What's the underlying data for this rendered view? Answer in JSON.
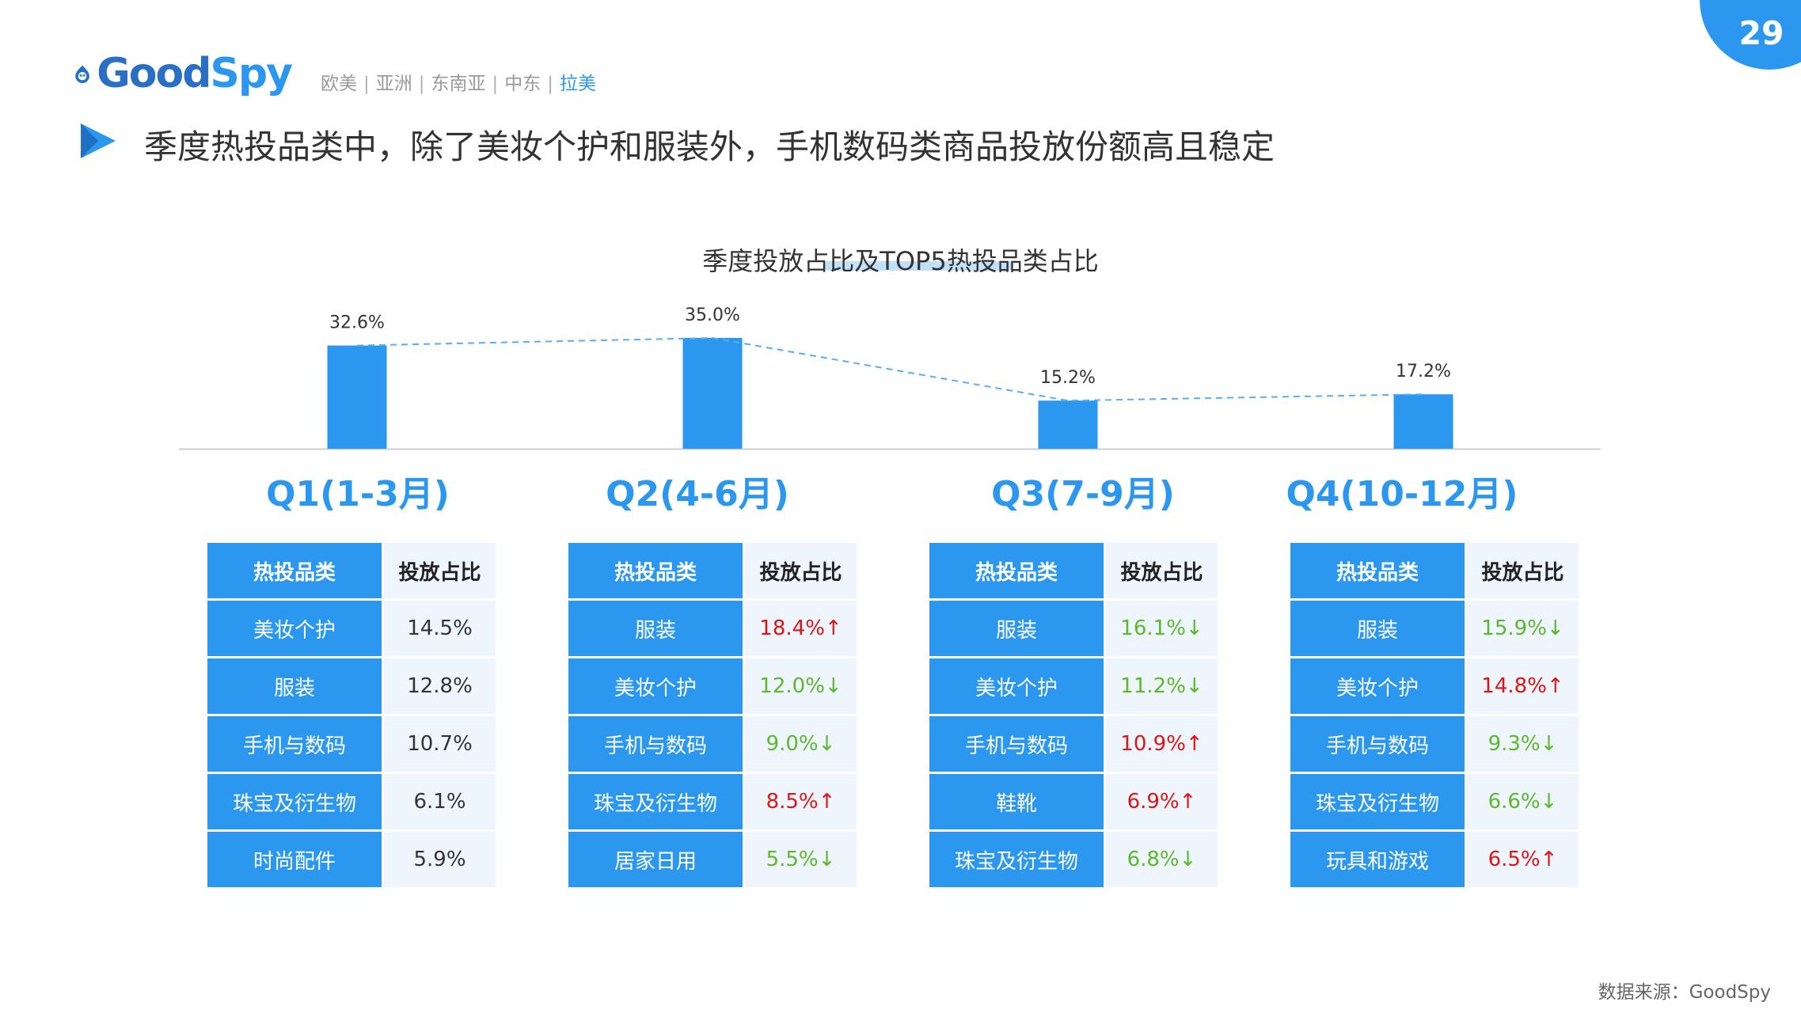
{
  "page_number": "29",
  "logo": {
    "good": "Good",
    "spy": "Spy"
  },
  "regions": [
    "欧美",
    "亚洲",
    "东南亚",
    "中东",
    "拉美"
  ],
  "region_active": "拉美",
  "headline": "季度热投品类中，除了美妆个护和服装外，手机数码类商品投放份额高且稳定",
  "colors": {
    "accent": "#2b97ef",
    "up": "#e01414",
    "down": "#5cb82c"
  },
  "chart_data": {
    "type": "bar",
    "title": "季度投放占比及TOP5热投品类占比",
    "categories": [
      "Q1(1-3月)",
      "Q2(4-6月)",
      "Q3(7-9月)",
      "Q4(10-12月)"
    ],
    "values": [
      32.6,
      35.0,
      15.2,
      17.2
    ],
    "data_labels": [
      "32.6%",
      "35.0%",
      "15.2%",
      "17.2%"
    ],
    "trend_line": "dashed",
    "ylim": [
      0,
      35.0
    ],
    "grid": false,
    "tables": [
      {
        "header": [
          "热投品类",
          "投放占比"
        ],
        "rows": [
          {
            "category": "美妆个护",
            "share": "14.5%",
            "trend": ""
          },
          {
            "category": "服装",
            "share": "12.8%",
            "trend": ""
          },
          {
            "category": "手机与数码",
            "share": "10.7%",
            "trend": ""
          },
          {
            "category": "珠宝及衍生物",
            "share": "6.1%",
            "trend": ""
          },
          {
            "category": "时尚配件",
            "share": "5.9%",
            "trend": ""
          }
        ]
      },
      {
        "header": [
          "热投品类",
          "投放占比"
        ],
        "rows": [
          {
            "category": "服装",
            "share": "18.4%↑",
            "trend": "up"
          },
          {
            "category": "美妆个护",
            "share": "12.0%↓",
            "trend": "down"
          },
          {
            "category": "手机与数码",
            "share": "9.0%↓",
            "trend": "down"
          },
          {
            "category": "珠宝及衍生物",
            "share": "8.5%↑",
            "trend": "up"
          },
          {
            "category": "居家日用",
            "share": "5.5%↓",
            "trend": "down"
          }
        ]
      },
      {
        "header": [
          "热投品类",
          "投放占比"
        ],
        "rows": [
          {
            "category": "服装",
            "share": "16.1%↓",
            "trend": "down"
          },
          {
            "category": "美妆个护",
            "share": "11.2%↓",
            "trend": "down"
          },
          {
            "category": "手机与数码",
            "share": "10.9%↑",
            "trend": "up"
          },
          {
            "category": "鞋靴",
            "share": "6.9%↑",
            "trend": "up"
          },
          {
            "category": "珠宝及衍生物",
            "share": "6.8%↓",
            "trend": "down"
          }
        ]
      },
      {
        "header": [
          "热投品类",
          "投放占比"
        ],
        "rows": [
          {
            "category": "服装",
            "share": "15.9%↓",
            "trend": "down"
          },
          {
            "category": "美妆个护",
            "share": "14.8%↑",
            "trend": "up"
          },
          {
            "category": "手机与数码",
            "share": "9.3%↓",
            "trend": "down"
          },
          {
            "category": "珠宝及衍生物",
            "share": "6.6%↓",
            "trend": "down"
          },
          {
            "category": "玩具和游戏",
            "share": "6.5%↑",
            "trend": "up"
          }
        ]
      }
    ]
  },
  "source": "数据来源：GoodSpy"
}
